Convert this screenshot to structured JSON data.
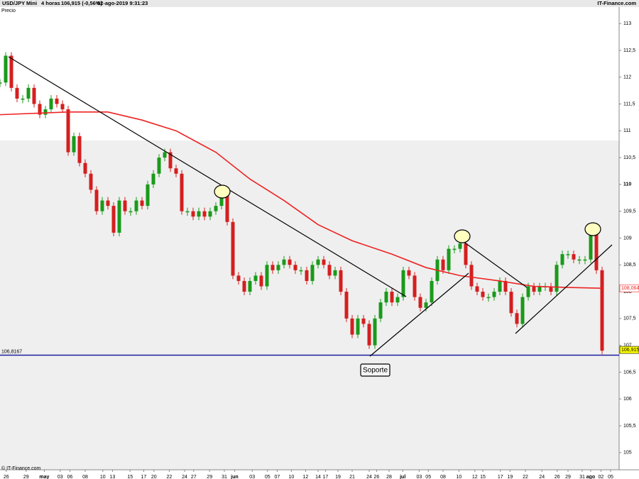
{
  "header": {
    "symbol": "USD/JPY Mini",
    "interval": "4 horas",
    "quote": "106,915 (-0,56%)",
    "timestamp": "02-ago-2019 9:31:23",
    "source": "IT-Finance.com",
    "legend": "Precio"
  },
  "footer": "© IT-Finance.com",
  "annotation": "Soporte",
  "chart_data": {
    "type": "candle-line",
    "ylim": [
      104.68,
      113.24
    ],
    "yticks": [
      105,
      {
        "value": 105.5,
        "label": "105,5"
      },
      106,
      {
        "value": 106.5,
        "label": "106,5"
      },
      107,
      {
        "value": 107.5,
        "label": "107,5"
      },
      108,
      {
        "value": 108.5,
        "label": "108,5"
      },
      109,
      {
        "value": 109.5,
        "label": "109,5"
      },
      110,
      {
        "value": 110.5,
        "label": "110,5"
      },
      111,
      {
        "value": 111.5,
        "label": "111,5"
      },
      112,
      {
        "value": 112.5,
        "label": "112,5"
      },
      113
    ],
    "xlim": [
      0,
      109
    ],
    "xticks": [
      {
        "value": 1.1,
        "label": "26"
      },
      {
        "value": 4.6,
        "label": "29"
      },
      {
        "value": 7.8,
        "label": "may"
      },
      {
        "value": 10.6,
        "label": "03"
      },
      {
        "value": 12.3,
        "label": "06"
      },
      {
        "value": 15,
        "label": "08"
      },
      {
        "value": 18.1,
        "label": "10"
      },
      {
        "value": 19.8,
        "label": "13"
      },
      {
        "value": 22.9,
        "label": "15"
      },
      {
        "value": 25.3,
        "label": "17"
      },
      {
        "value": 27.1,
        "label": "20"
      },
      {
        "value": 29.8,
        "label": "22"
      },
      {
        "value": 32.5,
        "label": "24"
      },
      {
        "value": 34.1,
        "label": "27"
      },
      {
        "value": 36.9,
        "label": "29"
      },
      {
        "value": 39.5,
        "label": "31"
      },
      {
        "value": 41.3,
        "label": "jun"
      },
      {
        "value": 44.4,
        "label": "03"
      },
      {
        "value": 47.1,
        "label": "05"
      },
      {
        "value": 48.8,
        "label": "07"
      },
      {
        "value": 51.3,
        "label": "10"
      },
      {
        "value": 53.8,
        "label": "12"
      },
      {
        "value": 56,
        "label": "14"
      },
      {
        "value": 57.3,
        "label": "17"
      },
      {
        "value": 59.5,
        "label": "19"
      },
      {
        "value": 62,
        "label": "21"
      },
      {
        "value": 65,
        "label": "24"
      },
      {
        "value": 66.3,
        "label": "26"
      },
      {
        "value": 68.5,
        "label": "28"
      },
      {
        "value": 70.9,
        "label": "jul"
      },
      {
        "value": 73.8,
        "label": "03"
      },
      {
        "value": 75.4,
        "label": "05"
      },
      {
        "value": 78,
        "label": "08"
      },
      {
        "value": 80.8,
        "label": "10"
      },
      {
        "value": 83.6,
        "label": "12"
      },
      {
        "value": 85,
        "label": "15"
      },
      {
        "value": 88.1,
        "label": "17"
      },
      {
        "value": 89.8,
        "label": "19"
      },
      {
        "value": 92.5,
        "label": "22"
      },
      {
        "value": 95.4,
        "label": "24"
      },
      {
        "value": 98.1,
        "label": "26"
      },
      {
        "value": 100,
        "label": "29"
      },
      {
        "value": 102.5,
        "label": "31"
      },
      {
        "value": 104,
        "label": "ago"
      },
      {
        "value": 105.8,
        "label": "02"
      },
      {
        "value": 107.5,
        "label": "05"
      }
    ],
    "series": [
      {
        "name": "USD/JPY",
        "up_color": "#1a9a1a",
        "down_color": "#d41f1f",
        "x": [
          0,
          1,
          2,
          3,
          4,
          5,
          6,
          7,
          8,
          9,
          10,
          11,
          12,
          13,
          14,
          15,
          16,
          17,
          18,
          19,
          20,
          21,
          22,
          23,
          24,
          25,
          26,
          27,
          28,
          29,
          30,
          31,
          32,
          33,
          34,
          35,
          36,
          37,
          38,
          39,
          40,
          41,
          42,
          43,
          44,
          45,
          46,
          47,
          48,
          49,
          50,
          51,
          52,
          53,
          54,
          55,
          56,
          57,
          58,
          59,
          60,
          61,
          62,
          63,
          64,
          65,
          66,
          67,
          68,
          69,
          70,
          71,
          72,
          73,
          74,
          75,
          76,
          77,
          78,
          79,
          80,
          81,
          82,
          83,
          84,
          85,
          86,
          87,
          88,
          89,
          90,
          91,
          92,
          93,
          94,
          95,
          96,
          97,
          98,
          99,
          100,
          101,
          102,
          103,
          104,
          105,
          106
        ],
        "values": [
          111.9,
          112.4,
          111.8,
          111.6,
          111.6,
          111.8,
          111.5,
          111.3,
          111.4,
          111.6,
          111.5,
          111.4,
          110.6,
          110.9,
          110.4,
          110.2,
          109.9,
          109.5,
          109.7,
          109.6,
          109.1,
          109.7,
          109.5,
          109.5,
          109.7,
          109.6,
          110.0,
          110.2,
          110.5,
          110.6,
          110.3,
          110.2,
          109.5,
          109.5,
          109.4,
          109.5,
          109.4,
          109.5,
          109.6,
          109.8,
          109.3,
          108.3,
          108.2,
          108.0,
          108.2,
          108.3,
          108.1,
          108.5,
          108.4,
          108.5,
          108.6,
          108.5,
          108.4,
          108.4,
          108.2,
          108.5,
          108.6,
          108.5,
          108.3,
          108.4,
          108.0,
          107.5,
          107.2,
          107.5,
          107.4,
          107.0,
          107.5,
          107.8,
          108.0,
          107.8,
          107.9,
          108.4,
          108.3,
          107.9,
          107.7,
          107.8,
          108.2,
          108.6,
          108.4,
          108.8,
          108.8,
          108.9,
          108.5,
          108.1,
          108.0,
          107.9,
          107.9,
          108.0,
          108.2,
          108.0,
          107.6,
          107.4,
          107.9,
          108.1,
          108.0,
          108.1,
          108.1,
          108.0,
          108.5,
          108.7,
          108.7,
          108.6,
          108.6,
          108.6,
          109.1,
          108.4,
          106.9
        ],
        "last_value": {
          "value": 106.915,
          "label": "106,915"
        },
        "label_color": "#ffff00"
      },
      {
        "name": "MA",
        "color": "#ee2222",
        "x": [
          0,
          12,
          19,
          25,
          31,
          38,
          44,
          50,
          56,
          62,
          69,
          75,
          81,
          88,
          94,
          100,
          106
        ],
        "values": [
          111.3,
          111.35,
          111.35,
          111.2,
          111.0,
          110.6,
          110.1,
          109.7,
          109.25,
          108.95,
          108.7,
          108.45,
          108.3,
          108.2,
          108.1,
          108.08,
          108.064
        ],
        "last_value": {
          "value": 108.064,
          "label": "108,064"
        }
      }
    ],
    "support": {
      "value": 106.8167,
      "label": "106,8167",
      "color": "#1f1fa0"
    }
  }
}
